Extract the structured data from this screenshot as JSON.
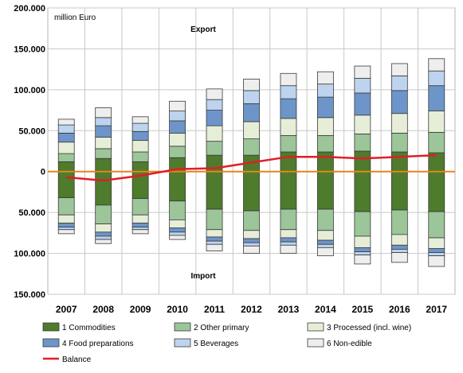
{
  "chart_data": {
    "type": "bar",
    "stacked": true,
    "unit_label": "million Euro",
    "ylim": [
      -150000,
      200000
    ],
    "y_ticks": [
      {
        "value": 200000,
        "label": "200.000"
      },
      {
        "value": 150000,
        "label": "150.000"
      },
      {
        "value": 100000,
        "label": "100.000"
      },
      {
        "value": 50000,
        "label": "50.000"
      },
      {
        "value": 0,
        "label": "0"
      },
      {
        "value": -50000,
        "label": "50.000"
      },
      {
        "value": -100000,
        "label": "100.000"
      },
      {
        "value": -150000,
        "label": "150.000"
      }
    ],
    "grid": true,
    "annotations": {
      "export": "Export",
      "import": "Import"
    },
    "categories": [
      "2007",
      "2008",
      "2009",
      "2010",
      "2011",
      "2012",
      "2013",
      "2014",
      "2015",
      "2016",
      "2017"
    ],
    "export_series": [
      {
        "name": "1 Commodities",
        "color": "#4e7b2c",
        "values": [
          12000,
          16000,
          12000,
          17000,
          20000,
          20000,
          24000,
          24000,
          25000,
          24000,
          23000
        ]
      },
      {
        "name": "2 Other primary",
        "color": "#9cc59a",
        "values": [
          10000,
          12000,
          12000,
          14000,
          17000,
          20000,
          20000,
          20000,
          21000,
          23000,
          25000
        ]
      },
      {
        "name": "3 Processed (incl. wine)",
        "color": "#e6eed7",
        "values": [
          14000,
          14000,
          14000,
          16000,
          19000,
          21000,
          21000,
          22000,
          23000,
          24000,
          26000
        ]
      },
      {
        "name": "4 Food preparations",
        "color": "#6d95c9",
        "values": [
          11000,
          14000,
          11000,
          15000,
          19000,
          22000,
          24000,
          25000,
          27000,
          28000,
          31000
        ]
      },
      {
        "name": "5 Beverages",
        "color": "#bdd3ee",
        "values": [
          10000,
          10000,
          10000,
          12000,
          13000,
          16000,
          16000,
          16000,
          18000,
          18000,
          18000
        ]
      },
      {
        "name": "6 Non-edible",
        "color": "#eeeeee",
        "values": [
          7000,
          12000,
          8000,
          12000,
          13000,
          14000,
          15000,
          15000,
          15000,
          15000,
          15000
        ]
      }
    ],
    "import_series": [
      {
        "name": "1 Commodities",
        "color": "#4e7b2c",
        "values": [
          -32000,
          -41000,
          -33000,
          -36000,
          -46000,
          -48000,
          -46000,
          -46000,
          -49000,
          -47000,
          -49000
        ]
      },
      {
        "name": "2 Other primary",
        "color": "#9cc59a",
        "values": [
          -21000,
          -23000,
          -20000,
          -23000,
          -25000,
          -24000,
          -25000,
          -26000,
          -30000,
          -30000,
          -32000
        ]
      },
      {
        "name": "3 Processed (incl. wine)",
        "color": "#e6eed7",
        "values": [
          -10000,
          -10000,
          -10000,
          -10000,
          -9000,
          -10000,
          -10000,
          -12000,
          -14000,
          -13000,
          -13000
        ]
      },
      {
        "name": "4 Food preparations",
        "color": "#6d95c9",
        "values": [
          -5000,
          -5000,
          -5000,
          -5000,
          -5000,
          -5000,
          -5000,
          -5000,
          -5000,
          -5000,
          -5000
        ]
      },
      {
        "name": "5 Beverages",
        "color": "#bdd3ee",
        "values": [
          -3000,
          -4000,
          -3000,
          -4000,
          -4000,
          -4000,
          -4000,
          -4000,
          -4000,
          -4000,
          -4000
        ]
      },
      {
        "name": "6 Non-edible",
        "color": "#eeeeee",
        "values": [
          -5000,
          -5000,
          -5000,
          -5000,
          -8000,
          -9000,
          -10000,
          -10000,
          -11000,
          -12000,
          -13000
        ]
      }
    ],
    "balance": {
      "name": "Balance",
      "color": "#e01e26",
      "values": [
        -7000,
        -11000,
        -5000,
        3000,
        4000,
        11000,
        18000,
        18000,
        16000,
        18000,
        20000
      ]
    },
    "zero_line_color": "#e8841a",
    "legend": {
      "position": "bottom",
      "items": [
        "1 Commodities",
        "2 Other primary",
        "3 Processed (incl. wine)",
        "4 Food preparations",
        "5 Beverages",
        "6 Non-edible",
        "Balance"
      ]
    }
  }
}
